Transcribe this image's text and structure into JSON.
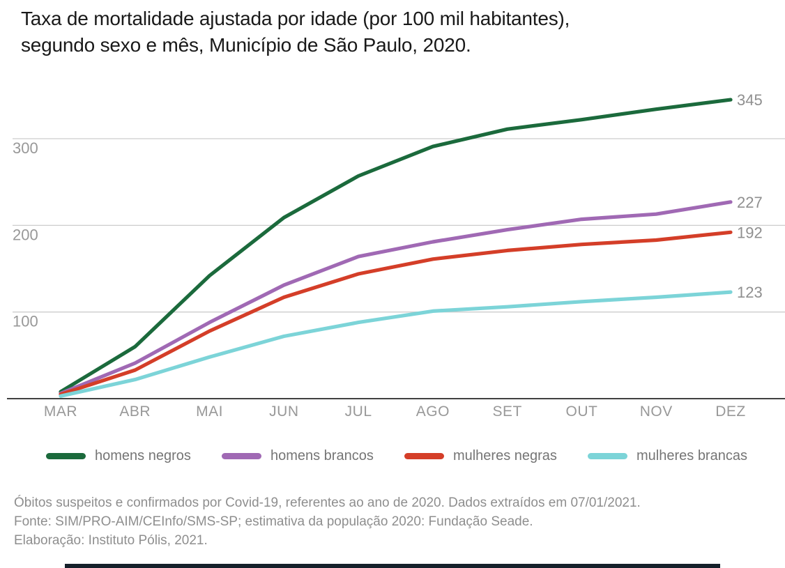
{
  "title": {
    "line1": "Taxa de mortalidade ajustada por idade (por 100 mil habitantes),",
    "line2": "segundo sexo e mês, Município de São Paulo, 2020."
  },
  "chart_data": {
    "type": "line",
    "categories": [
      "MAR",
      "ABR",
      "MAI",
      "JUN",
      "JUL",
      "AGO",
      "SET",
      "OUT",
      "NOV",
      "DEZ"
    ],
    "series": [
      {
        "name": "homens negros",
        "color": "#1b6a3c",
        "values": [
          8,
          60,
          142,
          209,
          257,
          291,
          311,
          322,
          334,
          345
        ],
        "end_label": "345"
      },
      {
        "name": "homens brancos",
        "color": "#a069b4",
        "values": [
          6,
          41,
          88,
          131,
          164,
          181,
          195,
          207,
          213,
          227
        ],
        "end_label": "227"
      },
      {
        "name": "mulheres negras",
        "color": "#d43e28",
        "values": [
          5,
          33,
          78,
          117,
          144,
          161,
          171,
          178,
          183,
          192
        ],
        "end_label": "192"
      },
      {
        "name": "mulheres brancas",
        "color": "#7cd4d8",
        "values": [
          3,
          22,
          48,
          72,
          88,
          101,
          106,
          112,
          117,
          123
        ],
        "end_label": "123"
      }
    ],
    "y_ticks": [
      100,
      200,
      300
    ],
    "ylim": [
      0,
      360
    ],
    "xlabel": "",
    "ylabel": "",
    "grid": "horizontal",
    "legend_position": "bottom"
  },
  "footer": {
    "lines": [
      "Óbitos suspeitos e confirmados por Covid-19, referentes ao ano de 2020. Dados extraídos em 07/01/2021.",
      "Fonte: SIM/PRO-AIM/CEInfo/SMS-SP; estimativa da população 2020: Fundação Seade.",
      "Elaboração: Instituto Pólis, 2021."
    ]
  },
  "colors": {
    "gridline": "#cccccc",
    "axis_line": "#404040",
    "tick_label": "#989898",
    "end_label": "#8f8f8f",
    "bottom_bar": "#15202a"
  }
}
